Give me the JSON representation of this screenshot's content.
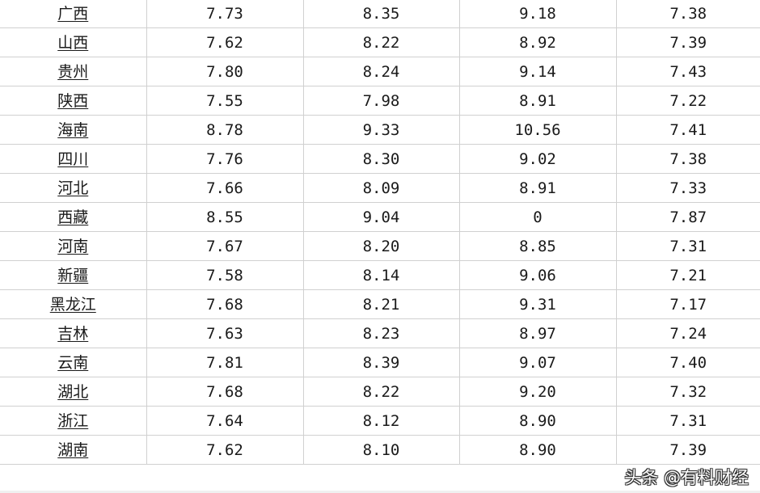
{
  "rows": [
    {
      "name": "广西",
      "v": [
        "7.73",
        "8.35",
        "9.18",
        "7.38"
      ]
    },
    {
      "name": "山西",
      "v": [
        "7.62",
        "8.22",
        "8.92",
        "7.39"
      ]
    },
    {
      "name": "贵州",
      "v": [
        "7.80",
        "8.24",
        "9.14",
        "7.43"
      ]
    },
    {
      "name": "陕西",
      "v": [
        "7.55",
        "7.98",
        "8.91",
        "7.22"
      ]
    },
    {
      "name": "海南",
      "v": [
        "8.78",
        "9.33",
        "10.56",
        "7.41"
      ]
    },
    {
      "name": "四川",
      "v": [
        "7.76",
        "8.30",
        "9.02",
        "7.38"
      ]
    },
    {
      "name": "河北",
      "v": [
        "7.66",
        "8.09",
        "8.91",
        "7.33"
      ]
    },
    {
      "name": "西藏",
      "v": [
        "8.55",
        "9.04",
        "0",
        "7.87"
      ]
    },
    {
      "name": "河南",
      "v": [
        "7.67",
        "8.20",
        "8.85",
        "7.31"
      ]
    },
    {
      "name": "新疆",
      "v": [
        "7.58",
        "8.14",
        "9.06",
        "7.21"
      ]
    },
    {
      "name": "黑龙江",
      "v": [
        "7.68",
        "8.21",
        "9.31",
        "7.17"
      ]
    },
    {
      "name": "吉林",
      "v": [
        "7.63",
        "8.23",
        "8.97",
        "7.24"
      ]
    },
    {
      "name": "云南",
      "v": [
        "7.81",
        "8.39",
        "9.07",
        "7.40"
      ]
    },
    {
      "name": "湖北",
      "v": [
        "7.68",
        "8.22",
        "9.20",
        "7.32"
      ]
    },
    {
      "name": "浙江",
      "v": [
        "7.64",
        "8.12",
        "8.90",
        "7.31"
      ]
    },
    {
      "name": "湖南",
      "v": [
        "7.62",
        "8.10",
        "8.90",
        "7.39"
      ]
    }
  ],
  "watermark": "头条 @有料财经",
  "colors": {
    "grid_line": "#d0d0d0",
    "text": "#1a1a1a"
  }
}
